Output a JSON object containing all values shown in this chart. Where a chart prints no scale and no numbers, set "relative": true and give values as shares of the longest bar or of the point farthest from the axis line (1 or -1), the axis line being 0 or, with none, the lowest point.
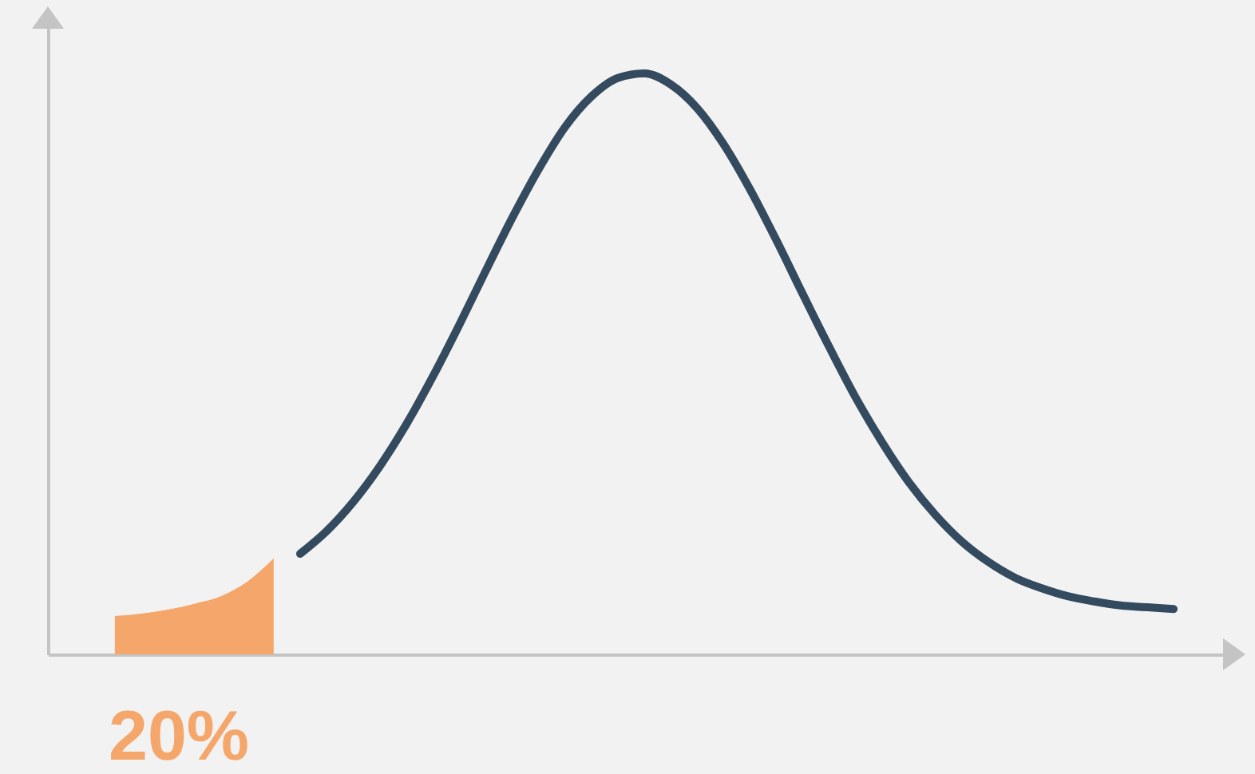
{
  "chart_data": {
    "type": "line",
    "relative": true,
    "categories": [
      null,
      null,
      null,
      null,
      null,
      null,
      null,
      null,
      null,
      null,
      null,
      null,
      null,
      null,
      null,
      null,
      null,
      null,
      null,
      null,
      null,
      null,
      null,
      null,
      null,
      null,
      null,
      null,
      null,
      null,
      null,
      null,
      null,
      null,
      null,
      null,
      null,
      null,
      null,
      null,
      null
    ],
    "series": [
      {
        "type": "area",
        "color": "#f5a66a",
        "values": [
          0.066,
          0.07,
          0.077,
          0.087,
          0.1,
          0.125,
          0.165,
          null,
          null,
          null,
          null,
          null,
          null,
          null,
          null,
          null,
          null,
          null,
          null,
          null,
          null,
          null,
          null,
          null,
          null,
          null,
          null,
          null,
          null,
          null,
          null,
          null,
          null,
          null,
          null,
          null,
          null,
          null,
          null,
          null,
          null
        ]
      },
      {
        "type": "line",
        "color": "#344a5f",
        "values": [
          null,
          null,
          null,
          null,
          null,
          null,
          null,
          0.173,
          0.212,
          0.262,
          0.323,
          0.395,
          0.477,
          0.566,
          0.659,
          0.75,
          0.834,
          0.907,
          0.96,
          0.992,
          1.0,
          0.981,
          0.94,
          0.878,
          0.8,
          0.712,
          0.619,
          0.528,
          0.441,
          0.364,
          0.296,
          0.24,
          0.194,
          0.159,
          0.132,
          0.114,
          0.1,
          0.091,
          0.084,
          0.081,
          0.078
        ]
      }
    ],
    "annotations": [
      "20%"
    ]
  }
}
